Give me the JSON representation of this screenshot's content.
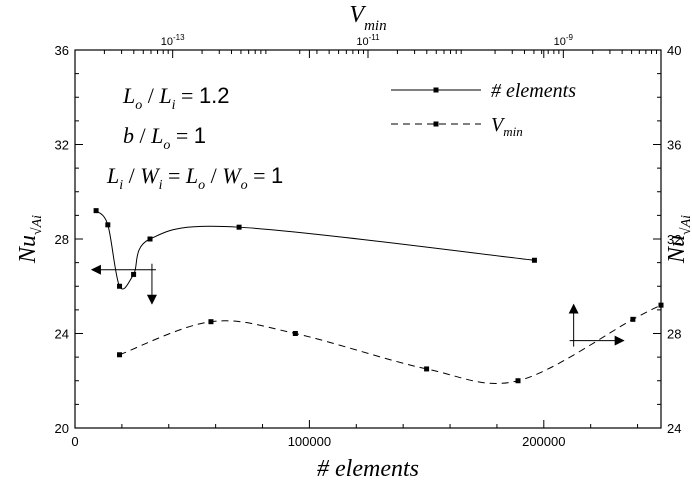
{
  "chart_data": {
    "type": "line",
    "xlabel": "# elements",
    "x2label": "V",
    "x2label_sub": "min",
    "ylabel": "Nu",
    "ylabel_sub": "√Ai",
    "y2label": "Nu",
    "y2label_sub": "√Ai",
    "xlim": [
      0,
      250000
    ],
    "ylim": [
      20,
      36
    ],
    "y2lim": [
      24,
      40
    ],
    "x_ticks": [
      0,
      100000,
      200000
    ],
    "x_tick_labels": [
      "0",
      "100000",
      "200000"
    ],
    "y_ticks": [
      20,
      24,
      28,
      32,
      36
    ],
    "y_tick_labels": [
      "20",
      "24",
      "28",
      "32",
      "36"
    ],
    "y2_ticks": [
      24,
      28,
      32,
      36,
      40
    ],
    "y2_tick_labels": [
      "24",
      "28",
      "32",
      "36",
      "40"
    ],
    "x2_scale": "log",
    "x2lim": [
      1e-14,
      1e-08
    ],
    "x2_ticks": [
      1e-13,
      1e-11,
      1e-09
    ],
    "x2_tick_labels": [
      {
        "base": "10",
        "exp": "-13"
      },
      {
        "base": "10",
        "exp": "-11"
      },
      {
        "base": "10",
        "exp": "-9"
      }
    ],
    "grid": false,
    "legend_position": "top-right",
    "series": [
      {
        "name": "# elements",
        "line": "solid",
        "marker": "square",
        "color": "#000000",
        "axes": "x-bottom / y-left",
        "x": [
          9000,
          14000,
          19000,
          25000,
          32000,
          70000,
          196000
        ],
        "y": [
          29.2,
          28.6,
          26.0,
          26.5,
          28.0,
          28.5,
          27.1
        ]
      },
      {
        "name": "V",
        "name_sub": "min",
        "line": "dashed",
        "marker": "square",
        "color": "#000000",
        "axes": "x-bottom / y-left",
        "x": [
          19000,
          58000,
          94000,
          150000,
          189000,
          238000,
          250000
        ],
        "y": [
          23.1,
          24.5,
          24.0,
          22.5,
          22.0,
          24.6,
          25.2
        ]
      }
    ],
    "annotations": [
      {
        "lhs": [
          {
            "t": "L",
            "s": "o"
          },
          {
            "t": " / "
          },
          {
            "t": "L",
            "s": "i"
          }
        ],
        "rhs": "1.2"
      },
      {
        "lhs": [
          {
            "t": "b"
          },
          {
            "t": " / "
          },
          {
            "t": "L",
            "s": "o"
          }
        ],
        "rhs": "1"
      },
      {
        "lhs": [
          {
            "t": "L",
            "s": "i"
          },
          {
            "t": " / "
          },
          {
            "t": "W",
            "s": "i"
          },
          {
            "t": " = "
          },
          {
            "t": "L",
            "s": "o"
          },
          {
            "t": " / "
          },
          {
            "t": "W",
            "s": "o"
          }
        ],
        "rhs": "1"
      }
    ],
    "indicator_arrows": [
      {
        "series": "# elements",
        "points_to": [
          "left",
          "down"
        ]
      },
      {
        "series": "V",
        "points_to": [
          "right",
          "up"
        ]
      }
    ]
  }
}
